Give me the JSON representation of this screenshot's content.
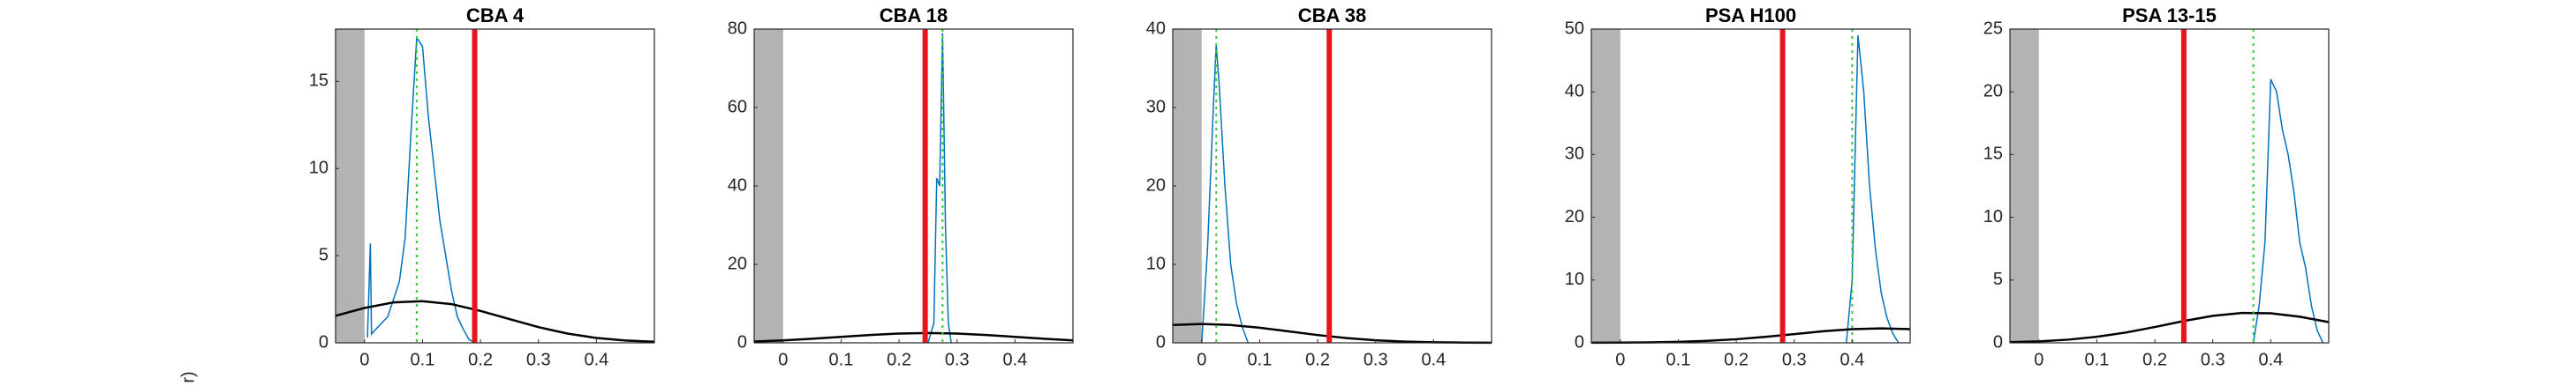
{
  "chart_data": [
    {
      "type": "line",
      "title": "CBA 4",
      "xlim": [
        -0.05,
        0.5
      ],
      "xticks": [
        0,
        0.1,
        0.2,
        0.3,
        0.4
      ],
      "ylim": [
        0,
        18
      ],
      "yticks": [
        0,
        5,
        10,
        15
      ],
      "shaded_region": {
        "range": [
          -0.05,
          0
        ],
        "color": "#b3b3b3"
      },
      "series": [
        {
          "color": "#0072bd",
          "x": [
            0.005,
            0.01,
            0.012,
            0.02,
            0.04,
            0.05,
            0.06,
            0.07,
            0.08,
            0.09,
            0.1,
            0.11,
            0.12,
            0.13,
            0.14,
            0.15,
            0.16,
            0.17,
            0.18,
            0.19
          ],
          "values": [
            0.3,
            5.7,
            0.5,
            0.8,
            1.5,
            2.5,
            3.5,
            6,
            12,
            17.5,
            17,
            13,
            10,
            7,
            5,
            3,
            1.5,
            0.8,
            0.2,
            0
          ]
        },
        {
          "color": "#000000",
          "x": [
            -0.05,
            0,
            0.05,
            0.1,
            0.15,
            0.2,
            0.25,
            0.3,
            0.35,
            0.4,
            0.45,
            0.5
          ],
          "values": [
            1.55,
            2.0,
            2.32,
            2.39,
            2.22,
            1.83,
            1.36,
            0.9,
            0.53,
            0.28,
            0.13,
            0.06
          ]
        }
      ],
      "vlines": [
        {
          "value": 0.19,
          "color": "#e8141c"
        },
        {
          "value": 0.09,
          "color": "#33cc33",
          "dashed": true
        }
      ]
    },
    {
      "type": "line",
      "title": "CBA 18",
      "xlim": [
        -0.05,
        0.5
      ],
      "xticks": [
        0,
        0.1,
        0.2,
        0.3,
        0.4
      ],
      "ylim": [
        0,
        80
      ],
      "yticks": [
        0,
        20,
        40,
        60,
        80
      ],
      "shaded_region": {
        "range": [
          -0.05,
          0
        ],
        "color": "#b3b3b3"
      },
      "series": [
        {
          "color": "#0072bd",
          "x": [
            0.25,
            0.26,
            0.265,
            0.27,
            0.275,
            0.28,
            0.285,
            0.29
          ],
          "values": [
            0,
            5,
            42,
            40,
            79,
            30,
            5,
            0
          ]
        },
        {
          "color": "#000000",
          "x": [
            -0.05,
            0,
            0.05,
            0.1,
            0.15,
            0.2,
            0.25,
            0.3,
            0.35,
            0.4,
            0.45,
            0.5
          ],
          "values": [
            0.34,
            0.62,
            1.03,
            1.52,
            2.0,
            2.36,
            2.5,
            2.36,
            2.0,
            1.52,
            1.03,
            0.62
          ]
        }
      ],
      "vlines": [
        {
          "value": 0.245,
          "color": "#e8141c"
        },
        {
          "value": 0.275,
          "color": "#33cc33",
          "dashed": true
        }
      ]
    },
    {
      "type": "line",
      "title": "CBA 38",
      "xlim": [
        -0.05,
        0.5
      ],
      "xticks": [
        0,
        0.1,
        0.2,
        0.3,
        0.4
      ],
      "ylim": [
        0,
        40
      ],
      "yticks": [
        0,
        10,
        20,
        30,
        40
      ],
      "shaded_region": {
        "range": [
          -0.05,
          0
        ],
        "color": "#b3b3b3"
      },
      "series": [
        {
          "color": "#0072bd",
          "x": [
            0.0,
            0.01,
            0.02,
            0.025,
            0.03,
            0.04,
            0.05,
            0.06,
            0.07,
            0.08
          ],
          "values": [
            0,
            12,
            30,
            38,
            33,
            20,
            10,
            5,
            2,
            0
          ]
        },
        {
          "color": "#000000",
          "x": [
            -0.05,
            0,
            0.05,
            0.1,
            0.15,
            0.2,
            0.25,
            0.3,
            0.35,
            0.4,
            0.45,
            0.5
          ],
          "values": [
            2.27,
            2.4,
            2.27,
            1.92,
            1.46,
            0.99,
            0.6,
            0.32,
            0.16,
            0.07,
            0.03,
            0.01
          ]
        }
      ],
      "vlines": [
        {
          "value": 0.22,
          "color": "#e8141c"
        },
        {
          "value": 0.025,
          "color": "#33cc33",
          "dashed": true
        }
      ]
    },
    {
      "type": "line",
      "title": "PSA H100",
      "xlim": [
        -0.05,
        0.5
      ],
      "xticks": [
        0,
        0.1,
        0.2,
        0.3,
        0.4
      ],
      "ylim": [
        0,
        50
      ],
      "yticks": [
        0,
        10,
        20,
        30,
        40,
        50
      ],
      "shaded_region": {
        "range": [
          -0.05,
          0
        ],
        "color": "#b3b3b3"
      },
      "series": [
        {
          "color": "#0072bd",
          "x": [
            0.39,
            0.4,
            0.405,
            0.41,
            0.42,
            0.43,
            0.44,
            0.45,
            0.46,
            0.47,
            0.48
          ],
          "values": [
            0,
            10,
            30,
            49,
            40,
            25,
            15,
            8,
            4,
            1.5,
            0
          ]
        },
        {
          "color": "#000000",
          "x": [
            -0.05,
            0,
            0.05,
            0.1,
            0.15,
            0.2,
            0.25,
            0.3,
            0.35,
            0.4,
            0.45,
            0.5
          ],
          "values": [
            0.01,
            0.03,
            0.07,
            0.15,
            0.31,
            0.57,
            0.95,
            1.39,
            1.84,
            2.18,
            2.3,
            2.18
          ]
        }
      ],
      "vlines": [
        {
          "value": 0.28,
          "color": "#e8141c"
        },
        {
          "value": 0.4,
          "color": "#33cc33",
          "dashed": true
        }
      ]
    },
    {
      "type": "line",
      "title": "PSA 13-15",
      "xlim": [
        -0.05,
        0.5
      ],
      "xticks": [
        0,
        0.1,
        0.2,
        0.3,
        0.4
      ],
      "ylim": [
        0,
        25
      ],
      "yticks": [
        0,
        5,
        10,
        15,
        20,
        25
      ],
      "shaded_region": {
        "range": [
          -0.05,
          0
        ],
        "color": "#b3b3b3"
      },
      "series": [
        {
          "color": "#0072bd",
          "x": [
            0.37,
            0.38,
            0.39,
            0.4,
            0.41,
            0.42,
            0.43,
            0.44,
            0.45,
            0.46,
            0.47,
            0.48,
            0.49
          ],
          "values": [
            0,
            3,
            8,
            21,
            20,
            17,
            15,
            12,
            8,
            6,
            3,
            1,
            0
          ]
        },
        {
          "color": "#000000",
          "x": [
            -0.05,
            0,
            0.05,
            0.1,
            0.15,
            0.2,
            0.25,
            0.3,
            0.35,
            0.4,
            0.45,
            0.5
          ],
          "values": [
            0.05,
            0.11,
            0.25,
            0.48,
            0.82,
            1.26,
            1.74,
            2.15,
            2.38,
            2.35,
            2.08,
            1.65
          ]
        }
      ],
      "vlines": [
        {
          "value": 0.25,
          "color": "#e8141c"
        },
        {
          "value": 0.37,
          "color": "#33cc33",
          "dashed": true
        }
      ]
    }
  ],
  "cropped_label": "r)"
}
